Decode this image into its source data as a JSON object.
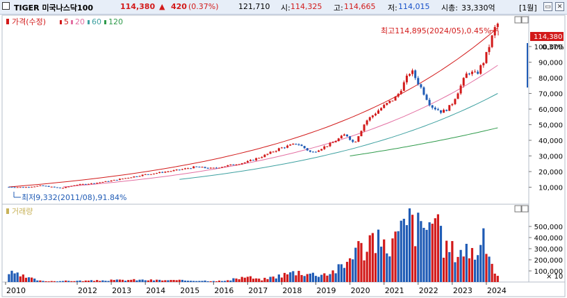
{
  "window": {
    "name": "TIGER 미국나스닥100",
    "price": "114,380",
    "change_arrow": "▲",
    "change": "420",
    "change_pct": "(0.37%)",
    "volume": "121,710",
    "open_label": "시:",
    "open": "114,325",
    "high_label": "고:",
    "high": "114,665",
    "low_label": "저:",
    "low": "114,015",
    "mcap_label": "시총:",
    "mcap": "33,330억",
    "period": "[1월]",
    "btn_restore": "▭",
    "btn_max": "□",
    "btn_close": "✕"
  },
  "price_legend": {
    "price_label": "가격(수정)",
    "ma": [
      "5",
      "20",
      "60",
      "120"
    ]
  },
  "volume_legend": {
    "label": "거래량"
  },
  "annotations": {
    "high": "최고114,895(2024/05),0.45%",
    "low": "최저9,332(2011/08),91.84%",
    "current_price_tag": "114,380",
    "current_pct": "0.37%",
    "volume_unit": "× 10"
  },
  "colors": {
    "up": "#d21a1a",
    "down": "#1f5bb5",
    "ma5": "#d21a1a",
    "ma20": "#e36fa2",
    "ma60": "#3da0a0",
    "ma120": "#2e9a4a",
    "header_bg": "#e7eef8"
  },
  "chart_data": [
    {
      "type": "candlestick",
      "title": "가격(수정)",
      "x_ticks": [
        "2010",
        "2012",
        "2013",
        "2014",
        "2015",
        "2016",
        "2017",
        "2018",
        "2019",
        "2020",
        "2021",
        "2022",
        "2023",
        "2024"
      ],
      "y_ticks": [
        "10,000",
        "20,000",
        "30,000",
        "40,000",
        "50,000",
        "60,000",
        "70,000",
        "80,000",
        "90,000",
        "100,000"
      ],
      "ylim": [
        0,
        120000
      ],
      "series": [
        {
          "name": "가격(수정)",
          "points": [
            [
              "2010-01",
              10200
            ],
            [
              "2010-07",
              10000
            ],
            [
              "2011-01",
              11000
            ],
            [
              "2011-08",
              9332
            ],
            [
              "2012-01",
              11500
            ],
            [
              "2012-07",
              12500
            ],
            [
              "2013-01",
              14000
            ],
            [
              "2013-07",
              16000
            ],
            [
              "2014-01",
              18000
            ],
            [
              "2014-07",
              19500
            ],
            [
              "2015-01",
              21000
            ],
            [
              "2015-07",
              23000
            ],
            [
              "2016-01",
              22000
            ],
            [
              "2016-07",
              24000
            ],
            [
              "2017-01",
              26000
            ],
            [
              "2017-07",
              30000
            ],
            [
              "2018-01",
              35000
            ],
            [
              "2018-07",
              38000
            ],
            [
              "2018-12",
              32000
            ],
            [
              "2019-07",
              38000
            ],
            [
              "2019-12",
              44000
            ],
            [
              "2020-03",
              38000
            ],
            [
              "2020-07",
              52000
            ],
            [
              "2020-12",
              60000
            ],
            [
              "2021-06",
              68000
            ],
            [
              "2021-11",
              85000
            ],
            [
              "2022-03",
              72000
            ],
            [
              "2022-06",
              62000
            ],
            [
              "2022-10",
              58000
            ],
            [
              "2023-01",
              62000
            ],
            [
              "2023-07",
              84000
            ],
            [
              "2023-10",
              82000
            ],
            [
              "2024-01",
              92000
            ],
            [
              "2024-05",
              114380
            ]
          ]
        },
        {
          "name": "5",
          "points": [
            [
              "2010-01",
              10200
            ],
            [
              "2024-05",
              112000
            ]
          ]
        },
        {
          "name": "20",
          "points": [
            [
              "2011-08",
              10200
            ],
            [
              "2024-05",
              88000
            ]
          ]
        },
        {
          "name": "60",
          "points": [
            [
              "2015-01",
              15000
            ],
            [
              "2024-05",
              70000
            ]
          ]
        },
        {
          "name": "120",
          "points": [
            [
              "2020-01",
              30000
            ],
            [
              "2024-05",
              48000
            ]
          ]
        }
      ],
      "last_value": 114380,
      "high": {
        "value": 114895,
        "date": "2024/05"
      },
      "low": {
        "value": 9332,
        "date": "2011/08"
      }
    },
    {
      "type": "bar",
      "title": "거래량",
      "y_ticks": [
        "100,000",
        "200,000",
        "300,000",
        "400,000",
        "500,000"
      ],
      "y_unit": "× 10",
      "ylim": [
        0,
        600000
      ],
      "points": [
        [
          "2010-01",
          85000
        ],
        [
          "2011-01",
          8000
        ],
        [
          "2012-06",
          12000
        ],
        [
          "2013-09",
          20000
        ],
        [
          "2015-01",
          15000
        ],
        [
          "2016-06",
          10000
        ],
        [
          "2017-01",
          50000
        ],
        [
          "2017-06",
          20000
        ],
        [
          "2018-01",
          60000
        ],
        [
          "2018-07",
          95000
        ],
        [
          "2019-01",
          70000
        ],
        [
          "2019-06",
          80000
        ],
        [
          "2019-12",
          150000
        ],
        [
          "2020-03",
          330000
        ],
        [
          "2020-06",
          290000
        ],
        [
          "2020-09",
          420000
        ],
        [
          "2021-01",
          300000
        ],
        [
          "2021-06",
          400000
        ],
        [
          "2021-11",
          560000
        ],
        [
          "2022-03",
          440000
        ],
        [
          "2022-06",
          600000
        ],
        [
          "2022-10",
          350000
        ],
        [
          "2023-01",
          280000
        ],
        [
          "2023-06",
          300000
        ],
        [
          "2023-10",
          270000
        ],
        [
          "2024-01",
          370000
        ],
        [
          "2024-05",
          60000
        ]
      ]
    }
  ]
}
